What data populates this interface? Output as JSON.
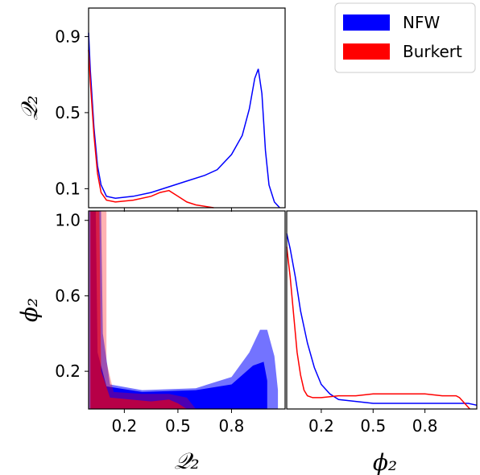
{
  "legend": {
    "placement": "top-right",
    "entries": [
      {
        "label": "NFW",
        "color": "#0000ff"
      },
      {
        "label": "Burkert",
        "color": "#ff0000"
      }
    ]
  },
  "labels": {
    "q2": "𝒬₂",
    "phi2": "ϕ₂"
  },
  "chart_data": [
    {
      "type": "line",
      "panel": "Q2 marginal",
      "xlim": [
        0,
        1.1
      ],
      "ylim": [
        0,
        1.05
      ],
      "yticks": [
        "0.1",
        "0.5",
        "0.9"
      ],
      "ylabel": "𝒬₂",
      "series": [
        {
          "name": "NFW",
          "color": "#0000ff",
          "x": [
            0,
            0.01,
            0.03,
            0.05,
            0.07,
            0.1,
            0.15,
            0.25,
            0.35,
            0.45,
            0.55,
            0.65,
            0.72,
            0.8,
            0.86,
            0.9,
            0.93,
            0.95,
            0.97,
            0.99,
            1.01,
            1.04,
            1.07
          ],
          "y": [
            0.92,
            0.72,
            0.42,
            0.22,
            0.12,
            0.06,
            0.05,
            0.06,
            0.08,
            0.11,
            0.14,
            0.17,
            0.2,
            0.28,
            0.38,
            0.52,
            0.68,
            0.73,
            0.6,
            0.3,
            0.12,
            0.03,
            0.0
          ]
        },
        {
          "name": "Burkert",
          "color": "#ff0000",
          "x": [
            0,
            0.01,
            0.03,
            0.05,
            0.07,
            0.1,
            0.15,
            0.25,
            0.35,
            0.4,
            0.45,
            0.5,
            0.55,
            0.6,
            0.7
          ],
          "y": [
            0.83,
            0.66,
            0.38,
            0.18,
            0.08,
            0.04,
            0.03,
            0.04,
            0.06,
            0.08,
            0.09,
            0.06,
            0.03,
            0.015,
            0.0
          ]
        }
      ]
    },
    {
      "type": "contour",
      "panel": "phi2 vs Q2",
      "xlim": [
        0,
        1.1
      ],
      "ylim": [
        0,
        1.05
      ],
      "xticks": [
        "0.2",
        "0.5",
        "0.8"
      ],
      "yticks": [
        "0.2",
        "0.6",
        "1.0"
      ],
      "xlabel": "𝒬₂",
      "ylabel": "ϕ₂",
      "series": [
        {
          "name": "NFW",
          "color": "#0000ff",
          "levels": [
            {
              "opacity": 1.0,
              "points": [
                [
                  0.01,
                  0
                ],
                [
                  0.01,
                  1.05
                ],
                [
                  0.04,
                  1.05
                ],
                [
                  0.05,
                  0.3
                ],
                [
                  0.1,
                  0.12
                ],
                [
                  0.3,
                  0.09
                ],
                [
                  0.6,
                  0.1
                ],
                [
                  0.8,
                  0.13
                ],
                [
                  0.92,
                  0.23
                ],
                [
                  0.98,
                  0.25
                ],
                [
                  1.0,
                  0.15
                ],
                [
                  1.0,
                  0
                ]
              ]
            },
            {
              "opacity": 0.55,
              "points": [
                [
                  0,
                  0
                ],
                [
                  0,
                  1.05
                ],
                [
                  0.07,
                  1.05
                ],
                [
                  0.08,
                  0.4
                ],
                [
                  0.12,
                  0.13
                ],
                [
                  0.3,
                  0.1
                ],
                [
                  0.6,
                  0.11
                ],
                [
                  0.8,
                  0.17
                ],
                [
                  0.9,
                  0.3
                ],
                [
                  0.96,
                  0.42
                ],
                [
                  1.0,
                  0.42
                ],
                [
                  1.04,
                  0.28
                ],
                [
                  1.06,
                  0.1
                ],
                [
                  1.06,
                  0
                ]
              ]
            }
          ]
        },
        {
          "name": "Burkert",
          "color": "#ff0000",
          "levels": [
            {
              "opacity": 0.6,
              "points": [
                [
                  0.01,
                  0
                ],
                [
                  0.01,
                  1.05
                ],
                [
                  0.06,
                  1.05
                ],
                [
                  0.07,
                  0.2
                ],
                [
                  0.12,
                  0.06
                ],
                [
                  0.35,
                  0.04
                ],
                [
                  0.45,
                  0.05
                ],
                [
                  0.5,
                  0.03
                ],
                [
                  0.55,
                  0
                ]
              ]
            },
            {
              "opacity": 0.3,
              "points": [
                [
                  0,
                  0
                ],
                [
                  0,
                  1.05
                ],
                [
                  0.1,
                  1.05
                ],
                [
                  0.1,
                  0.25
                ],
                [
                  0.14,
                  0.09
                ],
                [
                  0.3,
                  0.08
                ],
                [
                  0.45,
                  0.08
                ],
                [
                  0.55,
                  0.06
                ],
                [
                  0.6,
                  0
                ]
              ]
            }
          ]
        }
      ]
    },
    {
      "type": "line",
      "panel": "phi2 marginal",
      "xlim": [
        0,
        1.1
      ],
      "ylim": [
        0,
        1.05
      ],
      "xticks": [
        "0.2",
        "0.5",
        "0.8"
      ],
      "xlabel": "ϕ₂",
      "series": [
        {
          "name": "NFW",
          "color": "#0000ff",
          "x": [
            0,
            0.02,
            0.05,
            0.08,
            0.12,
            0.16,
            0.2,
            0.25,
            0.3,
            0.4,
            0.5,
            0.6,
            0.7,
            0.8,
            0.9,
            1.0,
            1.05,
            1.1
          ],
          "y": [
            0.93,
            0.85,
            0.7,
            0.52,
            0.35,
            0.22,
            0.13,
            0.08,
            0.05,
            0.04,
            0.03,
            0.03,
            0.03,
            0.03,
            0.03,
            0.03,
            0.03,
            0.02
          ]
        },
        {
          "name": "Burkert",
          "color": "#ff0000",
          "x": [
            0,
            0.02,
            0.04,
            0.06,
            0.08,
            0.1,
            0.12,
            0.15,
            0.2,
            0.3,
            0.4,
            0.5,
            0.6,
            0.7,
            0.8,
            0.9,
            0.98,
            1.0,
            1.03,
            1.06
          ],
          "y": [
            0.86,
            0.7,
            0.5,
            0.3,
            0.18,
            0.1,
            0.07,
            0.06,
            0.06,
            0.07,
            0.07,
            0.08,
            0.08,
            0.08,
            0.08,
            0.07,
            0.07,
            0.06,
            0.03,
            0.0
          ]
        }
      ]
    }
  ]
}
